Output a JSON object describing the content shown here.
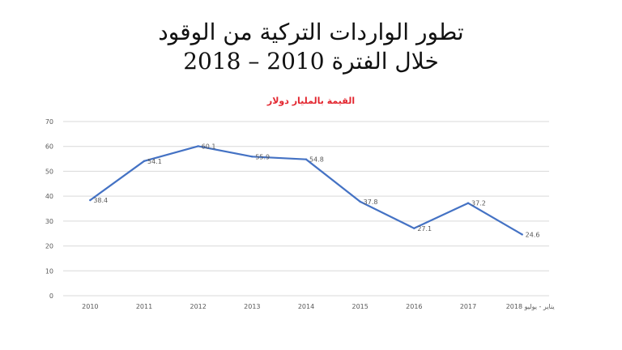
{
  "title": {
    "line1": "تطور الواردات التركية من الوقود",
    "line2": "خلال الفترة 2010 – 2018"
  },
  "colors": {
    "line": "#4472c4",
    "grid": "#d9d9d9",
    "axis_text": "#595959",
    "subtitle": "#e3262f"
  },
  "chart_data": {
    "type": "line",
    "title": "القيمة بالمليار دولار",
    "categories": [
      "2010",
      "2011",
      "2012",
      "2013",
      "2014",
      "2015",
      "2016",
      "2017",
      "يناير - يوليو 2018"
    ],
    "values": [
      38.4,
      54.1,
      60.1,
      55.9,
      54.8,
      37.8,
      27.1,
      37.2,
      24.6
    ],
    "data_labels": [
      "38.4",
      "54.1",
      "60.1",
      "55.9",
      "54.8",
      "37.8",
      "27.1",
      "37.2",
      "24.6"
    ],
    "ylim": [
      0,
      70
    ],
    "yticks": [
      "0",
      "10",
      "20",
      "30",
      "40",
      "50",
      "60",
      "70"
    ],
    "grid": true,
    "legend": "none"
  }
}
